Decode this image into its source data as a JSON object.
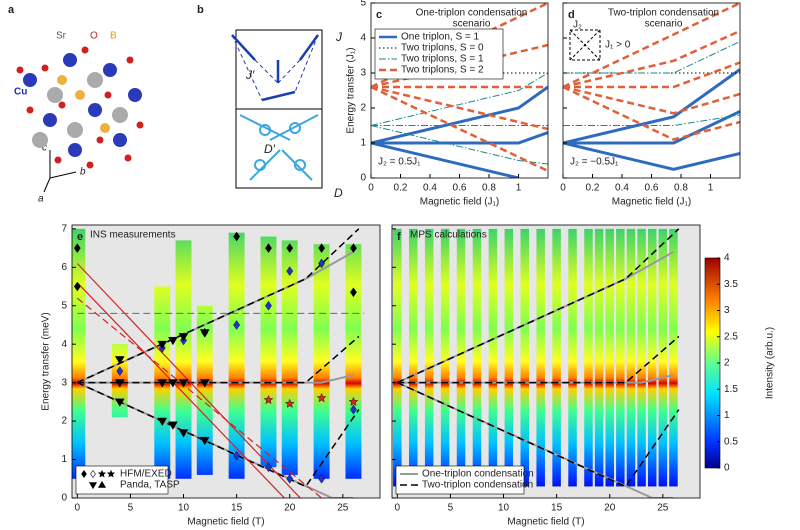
{
  "panels": {
    "a": {
      "label": "a",
      "atoms": [
        "Sr",
        "O",
        "B",
        "Cu"
      ],
      "axes": [
        "c",
        "b",
        "a"
      ]
    },
    "b": {
      "label": "b",
      "couplings": [
        "J",
        "J′",
        "D′",
        "D"
      ]
    }
  },
  "chart_data": [
    {
      "type": "line",
      "label": "c",
      "title": [
        "One-triplon condensation",
        "scenario"
      ],
      "xlabel": "Magnetic field (J₁)",
      "ylabel": "Energy transfer (J₁)",
      "xlim": [
        0,
        1.2
      ],
      "ylim": [
        0,
        5
      ],
      "xticks": [
        0,
        0.2,
        0.4,
        0.6,
        0.8,
        1
      ],
      "yticks": [
        0,
        1,
        2,
        3,
        4,
        5
      ],
      "legend": "upper left",
      "annotations": [
        "J₂ = 0.5J₁"
      ],
      "background": "#ffffff",
      "series": [
        {
          "name": "One triplon, S = 1",
          "color": "#2e6bbf",
          "style": "solid",
          "width": 3,
          "x": [
            0,
            1,
            null,
            0,
            1,
            1.2,
            null,
            0,
            1,
            1.2
          ],
          "values": [
            1,
            0,
            null,
            1,
            1,
            1.3,
            null,
            1,
            2,
            2.6
          ]
        },
        {
          "name": "Two triplons, S = 0",
          "color": "#000000",
          "style": "dotted",
          "width": 1,
          "x": [
            0,
            1.2
          ],
          "values": [
            3,
            3
          ]
        },
        {
          "name": "Two triplons, S = 1",
          "color": "#1a8a8a",
          "style": "dashdot",
          "width": 1,
          "x": [
            0,
            1,
            1.2,
            null,
            0,
            1.2,
            null,
            0,
            1,
            1.2
          ],
          "values": [
            1.5,
            0.5,
            0.4,
            null,
            1.5,
            1.5,
            null,
            1.5,
            2.5,
            3
          ]
        },
        {
          "name": "Two triplons, S = 2",
          "color": "#e0603a",
          "style": "dashed",
          "width": 2.5,
          "x": [
            0,
            1.2,
            null,
            0,
            1.2,
            null,
            0,
            1.2,
            null,
            0,
            1.2,
            null,
            0,
            1.2
          ],
          "values": [
            2.6,
            5,
            null,
            2.6,
            3.8,
            null,
            2.6,
            2.6,
            null,
            2.6,
            1.4,
            null,
            2.6,
            0.2
          ]
        }
      ]
    },
    {
      "type": "line",
      "label": "d",
      "title": [
        "Two-triplon condensation",
        "scenario"
      ],
      "xlabel": "Magnetic field (J₁)",
      "xlim": [
        0,
        1.2
      ],
      "ylim": [
        0,
        5
      ],
      "xticks": [
        0,
        0.2,
        0.4,
        0.6,
        0.8,
        1
      ],
      "yticks": [
        0,
        1,
        2,
        3,
        4,
        5
      ],
      "yticklabels": false,
      "annotations": [
        "J₂ = −0.5J₁"
      ],
      "inset": [
        "J₂",
        "J₁ > 0"
      ],
      "background": "#ffffff",
      "series": [
        {
          "color": "#2e6bbf",
          "style": "solid",
          "width": 3,
          "x": [
            0,
            0.75,
            1.2,
            null,
            0,
            0.75,
            1.2,
            null,
            0,
            0.75,
            1.2
          ],
          "values": [
            1,
            0.25,
            0.7,
            null,
            1,
            1,
            1.9,
            null,
            1,
            1.75,
            3.1
          ]
        },
        {
          "color": "#000000",
          "style": "dotted",
          "width": 1,
          "x": [
            0,
            1.2
          ],
          "values": [
            3,
            3
          ]
        },
        {
          "color": "#1a8a8a",
          "style": "dashdot",
          "width": 1,
          "x": [
            0,
            0.75,
            1.2,
            null,
            0,
            0.75,
            1.2
          ],
          "values": [
            1.5,
            1.5,
            1.8,
            null,
            3,
            3,
            3.9
          ]
        },
        {
          "color": "#e0603a",
          "style": "dashed",
          "width": 2.5,
          "x": [
            0,
            0.75,
            1.2,
            null,
            0,
            0.75,
            1.2,
            null,
            0,
            0.75,
            1.2,
            null,
            0,
            0.75,
            1.2,
            null,
            0,
            0.75,
            1.2
          ],
          "values": [
            2.6,
            4.1,
            5,
            null,
            2.6,
            3.35,
            4.2,
            null,
            2.6,
            2.6,
            3.3,
            null,
            2.6,
            1.85,
            2.4,
            null,
            2.6,
            1.1,
            1.6
          ]
        }
      ]
    },
    {
      "type": "field-map",
      "label": "e",
      "title": [
        "INS measurements"
      ],
      "xlabel": "Magnetic field (T)",
      "ylabel": "Energy transfer (meV)",
      "xlim": [
        -0.5,
        28.5
      ],
      "ylim": [
        0,
        7.1
      ],
      "xticks": [
        0,
        5,
        10,
        15,
        20,
        25
      ],
      "yticks": [
        0,
        1,
        2,
        3,
        4,
        5,
        6,
        7
      ],
      "background": "#e6e6e6",
      "legend": "lower left",
      "legend_labels": [
        "HFM/EXED",
        "Panda, TASP"
      ],
      "columns": {
        "x": [
          0,
          4,
          8,
          10,
          12,
          15,
          18,
          20,
          23,
          26
        ],
        "ymin": [
          0.5,
          2.1,
          0.5,
          0.5,
          0.6,
          0.5,
          0.8,
          0.6,
          0.5,
          0.5
        ],
        "ymax": [
          7,
          4,
          5.5,
          6.7,
          5,
          6.9,
          6.8,
          6.7,
          6.6,
          6.6
        ]
      },
      "series": [
        {
          "color": "#9a9a9a",
          "style": "solid",
          "width": 2,
          "x": [
            0,
            21.5,
            26,
            null,
            0,
            23,
            26,
            null,
            0,
            24,
            26
          ],
          "values": [
            3,
            5.7,
            6.4,
            null,
            3,
            3,
            3.2,
            null,
            3,
            0,
            0
          ]
        },
        {
          "color": "#000000",
          "style": "dashed",
          "width": 1.5,
          "x": [
            0,
            21.5,
            26.5,
            null,
            0,
            21.5,
            26.5,
            null,
            0,
            21.5,
            26.5
          ],
          "values": [
            3,
            5.7,
            7,
            null,
            3,
            3,
            4.2,
            null,
            3,
            0.3,
            2.3
          ]
        },
        {
          "color": "#d62020",
          "style": "solid",
          "width": 1.2,
          "x": [
            0,
            21,
            null,
            0,
            19.5
          ],
          "values": [
            6.1,
            0,
            null,
            5.6,
            0
          ]
        },
        {
          "color": "#d62020",
          "style": "dashed",
          "width": 1.2,
          "x": [
            0,
            23
          ],
          "values": [
            5.2,
            0
          ]
        },
        {
          "color": "#1a8a8a",
          "style": "dashed",
          "width": 1,
          "x": [
            0,
            27
          ],
          "values": [
            4.8,
            4.8
          ]
        },
        {
          "marker": "diamond",
          "color": "#000000",
          "x": [
            15,
            18,
            20,
            23,
            26,
            26,
            0,
            0
          ],
          "values": [
            6.8,
            6.5,
            6.5,
            6.5,
            6.5,
            5.35,
            6.5,
            5.5
          ]
        },
        {
          "marker": "diamond",
          "color": "#2233cc",
          "x": [
            4,
            8,
            10,
            12,
            15,
            18,
            20,
            23,
            15,
            18,
            20,
            23,
            26
          ],
          "values": [
            3.3,
            3.9,
            4.1,
            4.3,
            4.5,
            5,
            5.9,
            6.1,
            1.1,
            0.8,
            0.5,
            0.5,
            2.3
          ]
        },
        {
          "marker": "star",
          "color": "#e02020",
          "x": [
            18,
            20,
            23,
            26
          ],
          "values": [
            2.55,
            2.45,
            2.6,
            2.5
          ]
        },
        {
          "marker": "triangle-down",
          "color": "#000000",
          "x": [
            4,
            8,
            9,
            10,
            12,
            4,
            8,
            9,
            10,
            12,
            4,
            8,
            9,
            10,
            12
          ],
          "values": [
            3.6,
            4,
            4.1,
            4.2,
            4.3,
            3,
            3,
            3,
            3,
            3,
            2.5,
            2,
            1.9,
            1.7,
            1.5
          ]
        }
      ]
    },
    {
      "type": "field-map",
      "label": "f",
      "title": [
        "MPS calculations"
      ],
      "xlabel": "Magnetic field (T)",
      "xlim": [
        -0.5,
        28.5
      ],
      "ylim": [
        0,
        7.1
      ],
      "xticks": [
        0,
        5,
        10,
        15,
        20,
        25
      ],
      "yticks": [
        0,
        1,
        2,
        3,
        4,
        5,
        6,
        7
      ],
      "yticklabels": false,
      "background": "#e6e6e6",
      "legend": "lower left",
      "columns": {
        "x": [
          0,
          1.5,
          3,
          4.5,
          6,
          7.5,
          9,
          10.5,
          12,
          13.5,
          15,
          16.5,
          18,
          19,
          20,
          21,
          22,
          23,
          24,
          25,
          26
        ],
        "ymin": [
          0.3,
          0.3,
          0.3,
          0.3,
          0.3,
          0.3,
          0.3,
          0.3,
          0.3,
          0.3,
          0.3,
          0.3,
          0.3,
          0.3,
          0.3,
          0.3,
          0.3,
          0.3,
          0.3,
          0.3,
          0.3
        ],
        "ymax": [
          7,
          7,
          7,
          7,
          7,
          7,
          7,
          7,
          7,
          7,
          7,
          7,
          7,
          7,
          7,
          7,
          7,
          7,
          7,
          7,
          7
        ]
      },
      "colorbar": {
        "label": "Intensity (arb.u.)",
        "lim": [
          0,
          4
        ],
        "ticks": [
          0,
          0.5,
          1,
          1.5,
          2,
          2.5,
          3,
          3.5,
          4
        ]
      },
      "series": [
        {
          "name": "One-triplon condensation",
          "color": "#9a9a9a",
          "style": "solid",
          "width": 2,
          "x": [
            0,
            21.5,
            26,
            null,
            0,
            23,
            26,
            null,
            0,
            24,
            26
          ],
          "values": [
            3,
            5.7,
            6.4,
            null,
            3,
            3,
            3.2,
            null,
            3,
            0,
            0
          ]
        },
        {
          "name": "Two-triplon condensation",
          "color": "#000000",
          "style": "dashed",
          "width": 1.5,
          "x": [
            0,
            21.5,
            26.5,
            null,
            0,
            21.5,
            26.5,
            null,
            0,
            21.5,
            26.5
          ],
          "values": [
            3,
            5.7,
            7,
            null,
            3,
            3,
            4.2,
            null,
            3,
            0.3,
            2.3
          ]
        }
      ]
    }
  ]
}
